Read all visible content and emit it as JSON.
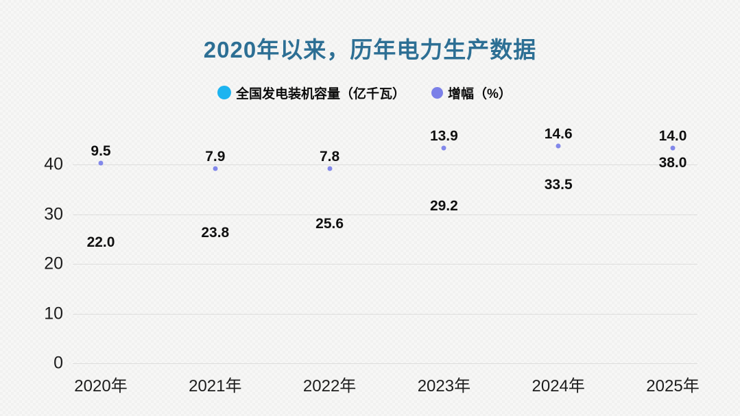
{
  "title": {
    "text": "2020年以来，历年电力生产数据",
    "color": "#2d6f94"
  },
  "legend": {
    "items": [
      {
        "label": "全国发电装机容量（亿千瓦）",
        "color": "#1db4f0"
      },
      {
        "label": "增幅（%）",
        "color": "#7b80e8"
      }
    ]
  },
  "chart_data": {
    "type": "scatter",
    "title": "2020年以来，历年电力生产数据",
    "categories": [
      "2020年",
      "2021年",
      "2022年",
      "2023年",
      "2024年",
      "2025年"
    ],
    "series": [
      {
        "name": "全国发电装机容量（亿千瓦）",
        "values": [
          22.0,
          23.8,
          25.6,
          29.2,
          33.5,
          38.0
        ],
        "color": "#1db4f0",
        "axis": "y1",
        "marker_visible": false
      },
      {
        "name": "增幅（%）",
        "values": [
          9.5,
          7.9,
          7.8,
          13.9,
          14.6,
          14.0
        ],
        "color": "#8288ea",
        "axis": "y2",
        "marker_visible": true
      }
    ],
    "yticks": [
      0,
      10,
      20,
      30,
      40
    ],
    "ylim": [
      0,
      46.9
    ],
    "y2lim": [
      -50,
      19.3
    ],
    "xlabel": "",
    "ylabel": "",
    "grid": true,
    "legend_position": "top"
  }
}
